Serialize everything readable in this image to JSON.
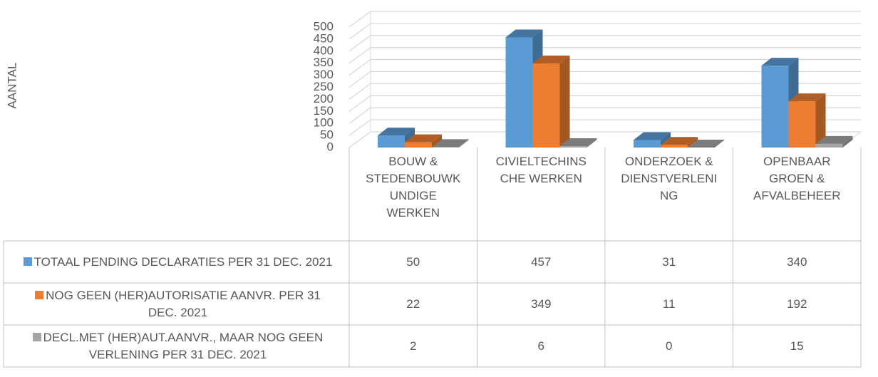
{
  "chart_data": {
    "type": "bar",
    "y_label": "AANTAL",
    "categories": [
      "BOUW & STEDENBOUWKUNDIGE WERKEN",
      "CIVIELTECHINSCHE WERKEN",
      "ONDERZOEK & DIENSTVERLENING",
      "OPENBAAR GROEN & AFVALBEHEER"
    ],
    "series": [
      {
        "name": "TOTAAL PENDING DECLARATIES PER 31 DEC. 2021",
        "color": "#5b9bd5",
        "values": [
          50,
          457,
          31,
          340
        ]
      },
      {
        "name": "NOG GEEN (HER)AUTORISATIE AANVR. PER 31 DEC. 2021",
        "color": "#ed7d31",
        "values": [
          22,
          349,
          11,
          192
        ]
      },
      {
        "name": "DECL.MET (HER)AUT.AANVR., MAAR NOG GEEN VERLENING PER 31 DEC. 2021",
        "color": "#a5a5a5",
        "values": [
          2,
          6,
          0,
          15
        ]
      }
    ],
    "ylim": [
      0,
      500
    ],
    "yticks": [
      0,
      50,
      100,
      150,
      200,
      250,
      300,
      350,
      400,
      450,
      500
    ],
    "grid": true
  }
}
